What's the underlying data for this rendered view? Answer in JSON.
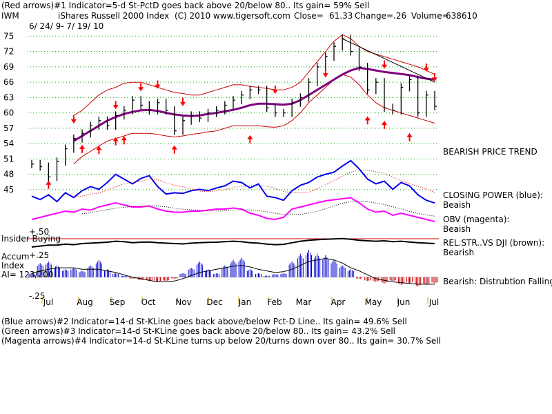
{
  "header": {
    "red_arrows": "(Red arrows)#1 Indicator=5-d St-PctD goes back above 20/below 80.. Its gain= 59% Sell",
    "symbol": "IWM",
    "index_name": "iShares Russell 2000 Index",
    "copyright": "(C) 2010 www.tigersoft.com",
    "close_label": "Close=",
    "close_value": "61.33",
    "change_label": "Change=",
    "change_value": ".26",
    "volume_label": "Volume=",
    "volume_value": "638610",
    "date_range": "6/ 24/ 9- 7/ 19/ 10"
  },
  "footer": {
    "blue_arrows": "(Blue arrows)#2 Indicator=14-d St-KLine goes back above/below Pct-D Line.. Its gain= 49.6% Sell",
    "green_arrows": "(Green arrows)#3 Indicator=14-d St-KLine goes back above 20/below 80.. Its gain= 43.2% Sell",
    "magenta_arrows": "(Magenta arrows)#4 Indicator=14-d St-KLine turns up below 20/turns down over 80.. Its gain= 30.7% Sell"
  },
  "annotations": {
    "bearish_trend": "BEARISH PRICE TREND",
    "closing_power": "CLOSING POWER (blue):",
    "closing_power_status": "Beaish",
    "obv": "OBV (magenta):",
    "obv_status": "Beaish",
    "relstr": "REL.STR..VS DJI (brown):",
    "relstr_status": "Bearish",
    "distribution": "Bearish: Distrubtion Falling.",
    "insider_buying": "Insider Buying",
    "accum_label_1": "Accum",
    "accum_label_2": "Index",
    "ai_value": "AI= 123/200",
    "accum_plus50": "+.50",
    "accum_plus25": "+.25",
    "accum_minus25": "-.25"
  },
  "colors": {
    "price_bars": "#000000",
    "bands": "#cc0000",
    "moving_average": "#800080",
    "closing_power": "#0000ee",
    "obv": "#ff00ff",
    "rel_str": "#000000",
    "accum_pos": "#0000cc",
    "accum_neg": "#cc0000",
    "grid": "#00aa00",
    "arrow": "#ff0000"
  },
  "chart_data": {
    "type": "line",
    "title": "iShares Russell 2000 Index (IWM)",
    "y_ticks": [
      75,
      72,
      69,
      66,
      63,
      60,
      57,
      54,
      51,
      48,
      45
    ],
    "ylim": [
      43.5,
      76
    ],
    "x_months": [
      "Jul",
      "Aug",
      "Sep",
      "Oct",
      "Nov",
      "Dec",
      "Jan",
      "Feb",
      "Mar",
      "Apr",
      "May",
      "Jun",
      "Jul"
    ],
    "price_close": [
      50,
      49.5,
      47.5,
      50.5,
      53,
      55,
      56,
      57.5,
      58.5,
      57.5,
      59.5,
      60.5,
      62.5,
      61.5,
      60.5,
      62,
      60.5,
      56.5,
      58.5,
      59.5,
      59,
      60,
      60.5,
      61.5,
      62.5,
      63.5,
      64.5,
      64.5,
      61,
      60,
      60,
      62,
      63,
      66,
      69,
      71,
      73,
      74.5,
      72,
      69,
      64.5,
      66,
      61,
      60.5,
      65,
      66.5,
      60,
      63.5,
      61.3
    ],
    "ma": [
      null,
      null,
      null,
      null,
      null,
      54.5,
      55.5,
      56.5,
      57.5,
      58.5,
      59.2,
      59.8,
      60.2,
      60.5,
      60.6,
      60.4,
      60,
      59.7,
      59.5,
      59.4,
      59.5,
      59.8,
      60,
      60.3,
      60.6,
      61,
      61.5,
      61.8,
      61.8,
      61.7,
      61.6,
      61.8,
      62.5,
      63.5,
      64.5,
      65.5,
      66.5,
      67.5,
      68.3,
      68.8,
      68.6,
      68.3,
      68,
      67.8,
      67.6,
      67.4,
      67,
      66.7,
      66.5
    ],
    "upper_band": [
      null,
      null,
      null,
      null,
      null,
      59.5,
      60.5,
      62,
      63.5,
      64.5,
      65,
      65.8,
      66,
      66,
      65.5,
      65,
      64.5,
      64,
      63.8,
      63.5,
      63.5,
      64,
      64.5,
      65,
      65.5,
      65.5,
      65.2,
      65,
      64.8,
      64.5,
      64.5,
      65,
      66,
      68,
      70,
      72,
      74,
      75.3,
      74.5,
      73,
      72,
      71.5,
      71,
      70.5,
      70,
      69.5,
      69,
      68.3,
      67.5
    ],
    "lower_band": [
      null,
      null,
      null,
      null,
      null,
      50,
      51.5,
      52.5,
      53.5,
      54.5,
      55,
      55.5,
      56,
      56,
      56,
      55.8,
      55.5,
      55.3,
      55.5,
      55.8,
      56,
      56.3,
      56.5,
      57,
      57.5,
      57.5,
      57.5,
      57.5,
      57.3,
      57.2,
      57.5,
      58.5,
      60,
      62,
      63.5,
      65,
      66.5,
      67.5,
      67,
      65.5,
      63.5,
      62,
      61,
      60.5,
      60,
      59.5,
      59,
      58.5,
      58
    ],
    "closing_power": [
      30,
      25,
      32,
      22,
      35,
      28,
      38,
      44,
      40,
      50,
      62,
      55,
      48,
      56,
      60,
      44,
      33,
      35,
      34,
      38,
      40,
      38,
      42,
      45,
      52,
      50,
      42,
      48,
      30,
      28,
      24,
      38,
      46,
      50,
      58,
      62,
      65,
      74,
      82,
      70,
      55,
      48,
      52,
      40,
      50,
      45,
      32,
      24,
      20
    ],
    "obv": [
      8,
      10,
      12,
      14,
      16,
      15,
      18,
      17,
      20,
      22,
      24,
      22,
      20,
      20,
      21,
      18,
      16,
      15,
      15,
      16,
      16,
      17,
      18,
      18,
      19,
      18,
      14,
      12,
      9,
      8,
      10,
      18,
      20,
      22,
      24,
      26,
      27,
      28,
      29,
      24,
      18,
      15,
      16,
      12,
      14,
      12,
      10,
      8,
      6
    ],
    "rel_str": [
      0.5,
      0.55,
      0.6,
      0.6,
      0.65,
      0.62,
      0.68,
      0.7,
      0.72,
      0.75,
      0.8,
      0.78,
      0.72,
      0.75,
      0.76,
      0.72,
      0.7,
      0.68,
      0.66,
      0.7,
      0.72,
      0.74,
      0.75,
      0.78,
      0.8,
      0.78,
      0.72,
      0.7,
      0.65,
      0.62,
      0.64,
      0.72,
      0.8,
      0.85,
      0.88,
      0.9,
      0.92,
      0.94,
      0.9,
      0.85,
      0.82,
      0.8,
      0.82,
      0.78,
      0.8,
      0.76,
      0.72,
      0.7,
      0.68
    ],
    "accum_index": [
      0.05,
      0.18,
      0.2,
      0.15,
      0.1,
      0.12,
      0.08,
      0.15,
      0.22,
      0.1,
      0.05,
      0.02,
      -0.02,
      -0.04,
      -0.05,
      -0.06,
      -0.05,
      -0.02,
      0.05,
      0.12,
      0.2,
      0.1,
      0.05,
      0.15,
      0.22,
      0.25,
      0.1,
      0.05,
      0.02,
      0.04,
      0.05,
      0.2,
      0.3,
      0.35,
      0.3,
      0.28,
      0.22,
      0.15,
      0.1,
      -0.02,
      -0.05,
      -0.06,
      -0.08,
      -0.05,
      -0.1,
      -0.08,
      -0.12,
      -0.1,
      -0.08
    ],
    "accum_ma": [
      0.05,
      0.08,
      0.1,
      0.12,
      0.12,
      0.12,
      0.1,
      0.1,
      0.1,
      0.08,
      0.06,
      0.03,
      0,
      -0.02,
      -0.04,
      -0.06,
      -0.06,
      -0.05,
      -0.02,
      0.02,
      0.06,
      0.08,
      0.1,
      0.12,
      0.14,
      0.15,
      0.13,
      0.1,
      0.08,
      0.06,
      0.07,
      0.1,
      0.15,
      0.2,
      0.22,
      0.24,
      0.22,
      0.18,
      0.12,
      0.08,
      0.03,
      -0.02,
      -0.04,
      -0.06,
      -0.07,
      -0.08,
      -0.09,
      -0.09,
      -0.09
    ],
    "accum_ylim": [
      -0.25,
      0.5
    ],
    "arrows_down": [
      [
        5,
        58.2
      ],
      [
        10,
        61
      ],
      [
        13,
        64.5
      ],
      [
        15,
        65
      ],
      [
        18,
        61.6
      ],
      [
        29,
        64
      ],
      [
        35,
        67.2
      ],
      [
        42,
        68.9
      ],
      [
        47,
        68.3
      ],
      [
        48,
        66.4
      ]
    ],
    "arrows_up": [
      [
        2,
        46.5
      ],
      [
        6,
        53.5
      ],
      [
        8,
        53.3
      ],
      [
        10,
        55
      ],
      [
        11,
        55.2
      ],
      [
        17,
        53.4
      ],
      [
        26,
        55.4
      ],
      [
        40,
        59.1
      ],
      [
        42,
        58.2
      ],
      [
        45,
        55.8
      ]
    ],
    "trendline": [
      [
        37,
        74.5
      ],
      [
        48,
        66
      ]
    ]
  }
}
